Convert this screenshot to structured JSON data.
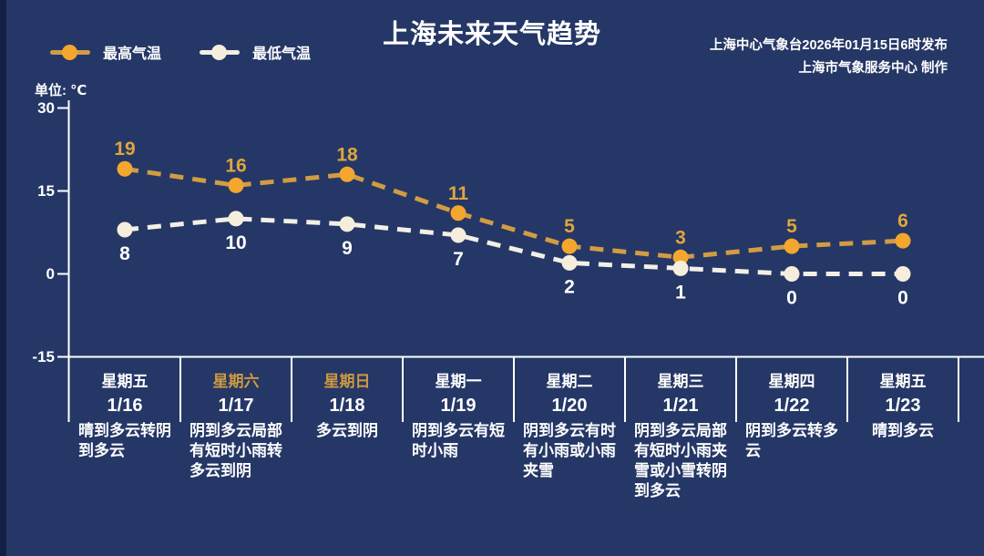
{
  "header": {
    "title": "上海未来天气趋势",
    "source_line1": "上海中心气象台2026年01月15日6时发布",
    "source_line2": "上海市气象服务中心  制作",
    "legend": [
      {
        "label": "最高气温"
      },
      {
        "label": "最低气温"
      }
    ]
  },
  "chart_data": {
    "type": "line",
    "unit_label": "单位: ℃",
    "ylabel": "℃",
    "ylim": [
      -15,
      30
    ],
    "y_ticks": [
      30,
      15,
      0,
      -15
    ],
    "grid": false,
    "legend_position": "top-left",
    "weekdays": [
      "星期五",
      "星期六",
      "星期日",
      "星期一",
      "星期二",
      "星期三",
      "星期四",
      "星期五"
    ],
    "categories": [
      "1/16",
      "1/17",
      "1/18",
      "1/19",
      "1/20",
      "1/21",
      "1/22",
      "1/23"
    ],
    "weekend_indices": [
      1,
      2
    ],
    "series": [
      {
        "name": "最高气温",
        "values": [
          19,
          16,
          18,
          11,
          5,
          3,
          5,
          6
        ],
        "label_position": "above"
      },
      {
        "name": "最低气温",
        "values": [
          8,
          10,
          9,
          7,
          2,
          1,
          0,
          0
        ],
        "label_position": "below"
      }
    ],
    "weather": [
      "晴到多云转阴\n到多云",
      "阴到多云局部\n有短时小雨转\n多云到阴",
      "多云到阴",
      "阴到多云有短\n时小雨",
      "阴到多云有时\n有小雨或小雨\n夹雪",
      "阴到多云局部\n有短时小雨夹\n雪或小雪转阴\n到多云",
      "阴到多云转多\n云",
      "晴到多云"
    ]
  },
  "colors": {
    "background": "#253766",
    "left_strip": "#131F44",
    "axis_white": "#FFFFFF",
    "high_line": "#D29C43",
    "high_marker": "#F3A72F",
    "high_label": "#DFA53C",
    "low_line": "#F2EFE6",
    "low_marker": "#F6EEDC",
    "low_label": "#FFFFFF",
    "weekend_gold": "#CE9940"
  }
}
